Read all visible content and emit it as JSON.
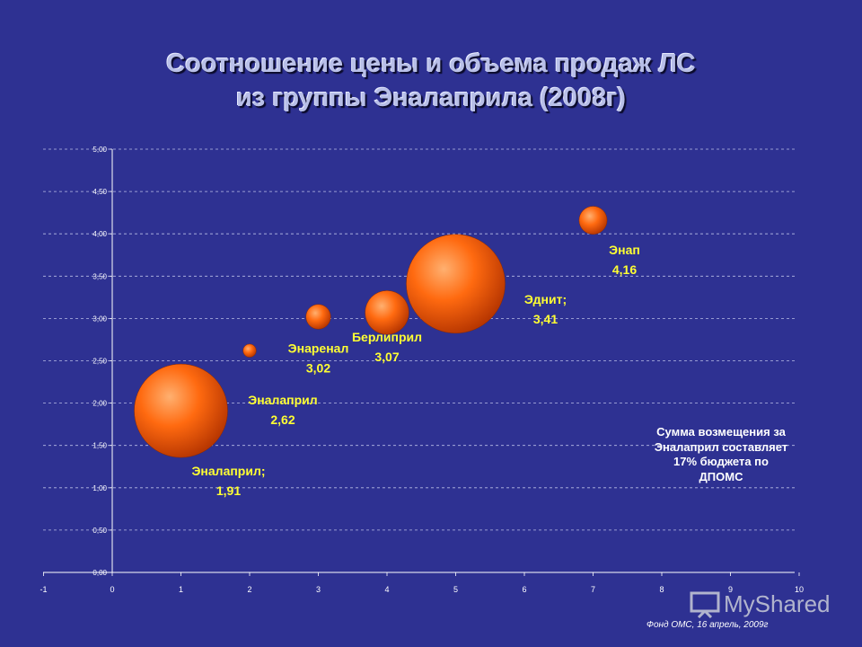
{
  "title_line1": "Соотношение цены и объема продаж ЛС",
  "title_line2": "из группы Эналаприла (2008г)",
  "note": "Сумма возмещения за Эналаприл составляет 17% бюджета по ДПОМС",
  "source": "Фонд ОМС, 16 апрель, 2009г",
  "watermark": "MyShared",
  "chart_data": {
    "type": "scatter",
    "bubble": true,
    "xlim": [
      -1,
      10
    ],
    "ylim": [
      0,
      5
    ],
    "x_ticks": [
      "-1",
      "0",
      "1",
      "2",
      "3",
      "4",
      "5",
      "6",
      "7",
      "8",
      "9",
      "10"
    ],
    "y_ticks": [
      "0,00",
      "0,50",
      "1,00",
      "1,50",
      "2,00",
      "2,50",
      "3,00",
      "3,50",
      "4,00",
      "4,50",
      "5,00"
    ],
    "grid": true,
    "bubble_color": "#ff6a10",
    "points": [
      {
        "label_name": "Эналаприл;",
        "label_value": "1,91",
        "x": 1,
        "y": 1.91,
        "size": 1.0
      },
      {
        "label_name": "Эналаприл",
        "label_value": "2,62",
        "x": 2,
        "y": 2.62,
        "size": 0.02
      },
      {
        "label_name": "Энаренал",
        "label_value": "3,02",
        "x": 3,
        "y": 3.02,
        "size": 0.07
      },
      {
        "label_name": "Берлиприл",
        "label_value": "3,07",
        "x": 4,
        "y": 3.07,
        "size": 0.22
      },
      {
        "label_name": "Эднит;",
        "label_value": "3,41",
        "x": 5,
        "y": 3.41,
        "size": 1.12
      },
      {
        "label_name": "Энап",
        "label_value": "4,16",
        "x": 7,
        "y": 4.16,
        "size": 0.09
      }
    ]
  }
}
